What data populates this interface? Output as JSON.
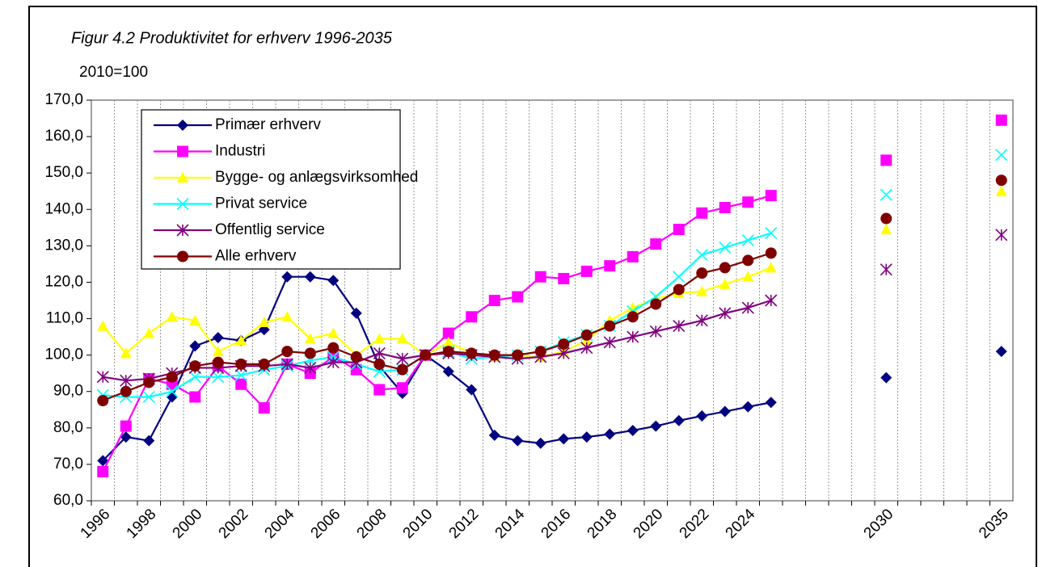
{
  "chart_data": {
    "type": "line",
    "title": "Figur 4.2 Produktivitet for erhverv 1996-2035",
    "subtitle": "2010=100",
    "categories": [
      "1996",
      null,
      "1998",
      null,
      "2000",
      null,
      "2002",
      null,
      "2004",
      null,
      "2006",
      null,
      "2008",
      null,
      "2010",
      null,
      "2012",
      null,
      "2014",
      null,
      "2016",
      null,
      "2018",
      null,
      "2020",
      null,
      "2022",
      null,
      "2024",
      null,
      null,
      null,
      null,
      null,
      "2030",
      null,
      null,
      null,
      null,
      "2035"
    ],
    "ylim": [
      60,
      170
    ],
    "yticks": [
      {
        "value": 60,
        "label": "60,0"
      },
      {
        "value": 70,
        "label": "70,0"
      },
      {
        "value": 80,
        "label": "80,0"
      },
      {
        "value": 90,
        "label": "90,0"
      },
      {
        "value": 100,
        "label": "100,0"
      },
      {
        "value": 110,
        "label": "110,0"
      },
      {
        "value": 120,
        "label": "120,0"
      },
      {
        "value": 130,
        "label": "130,0"
      },
      {
        "value": 140,
        "label": "140,0"
      },
      {
        "value": 150,
        "label": "150,0"
      },
      {
        "value": 160,
        "label": "160,0"
      },
      {
        "value": 170,
        "label": "170,0"
      }
    ],
    "legend": "upper left",
    "series": [
      {
        "name": "Primær erhverv",
        "color": "#000080",
        "marker": "diamond",
        "values": [
          71,
          77.5,
          76.5,
          88.5,
          102.5,
          104.8,
          104,
          107,
          121.5,
          121.5,
          120.5,
          111.5,
          97,
          89.5,
          100,
          95.5,
          90.5,
          78,
          76.5,
          75.8,
          77,
          77.5,
          78.3,
          79.3,
          80.5,
          82,
          83.3,
          84.5,
          85.8,
          87,
          null,
          null,
          null,
          null,
          93.8,
          null,
          null,
          null,
          null,
          101
        ]
      },
      {
        "name": "Industri",
        "color": "#ff00ff",
        "marker": "square",
        "values": [
          68,
          80.5,
          93.5,
          92,
          88.5,
          97,
          92,
          85.5,
          97.5,
          95,
          99.5,
          96,
          90.5,
          91,
          100,
          106,
          110.5,
          115,
          116,
          121.5,
          121,
          123,
          124.5,
          127,
          130.5,
          134.5,
          139,
          140.5,
          142,
          143.8,
          null,
          null,
          null,
          null,
          153.5,
          null,
          null,
          null,
          null,
          164.5
        ]
      },
      {
        "name": "Bygge- og anlægsvirksomhed",
        "color": "#ffff00",
        "marker": "triangle",
        "values": [
          108,
          100.5,
          106,
          110.5,
          109.5,
          101,
          104,
          109,
          110.5,
          104.5,
          106,
          100,
          104.5,
          104.5,
          100,
          103.5,
          100.5,
          99.5,
          100,
          99.5,
          101,
          104,
          109.5,
          113,
          115.5,
          117,
          117.5,
          119.5,
          121.5,
          124,
          null,
          null,
          null,
          null,
          134.5,
          null,
          null,
          null,
          null,
          145
        ]
      },
      {
        "name": "Privat service",
        "color": "#00ffff",
        "marker": "cross",
        "values": [
          89,
          88.5,
          88.5,
          90,
          94,
          94,
          94.5,
          96,
          97,
          98.5,
          99.5,
          97.5,
          95.5,
          96,
          100,
          101,
          99,
          99.5,
          100,
          101,
          103.5,
          105.5,
          108,
          112,
          116,
          121.5,
          127.5,
          129.5,
          131.5,
          133.5,
          null,
          null,
          null,
          null,
          144,
          null,
          null,
          null,
          null,
          155
        ]
      },
      {
        "name": "Offentlig service",
        "color": "#800080",
        "marker": "star",
        "values": [
          94,
          93,
          93.5,
          95,
          96.5,
          96.5,
          97,
          97,
          97.5,
          96.5,
          98,
          98,
          100.5,
          99,
          100,
          100.5,
          100,
          99.5,
          99,
          99.5,
          100.5,
          102,
          103.5,
          105,
          106.5,
          108,
          109.5,
          111.5,
          113,
          115,
          null,
          null,
          null,
          null,
          123.5,
          null,
          null,
          null,
          null,
          133
        ]
      },
      {
        "name": "Alle erhverv",
        "color": "#800000",
        "marker": "circle",
        "values": [
          87.5,
          90,
          92.5,
          94,
          97,
          98,
          97.5,
          97.5,
          101,
          100.5,
          102,
          99.5,
          97.5,
          96,
          100,
          101,
          100.5,
          100,
          100,
          101,
          103,
          105.5,
          108,
          110.5,
          114,
          118,
          122.5,
          124,
          126,
          128,
          null,
          null,
          null,
          null,
          137.5,
          null,
          null,
          null,
          null,
          148
        ]
      }
    ]
  }
}
